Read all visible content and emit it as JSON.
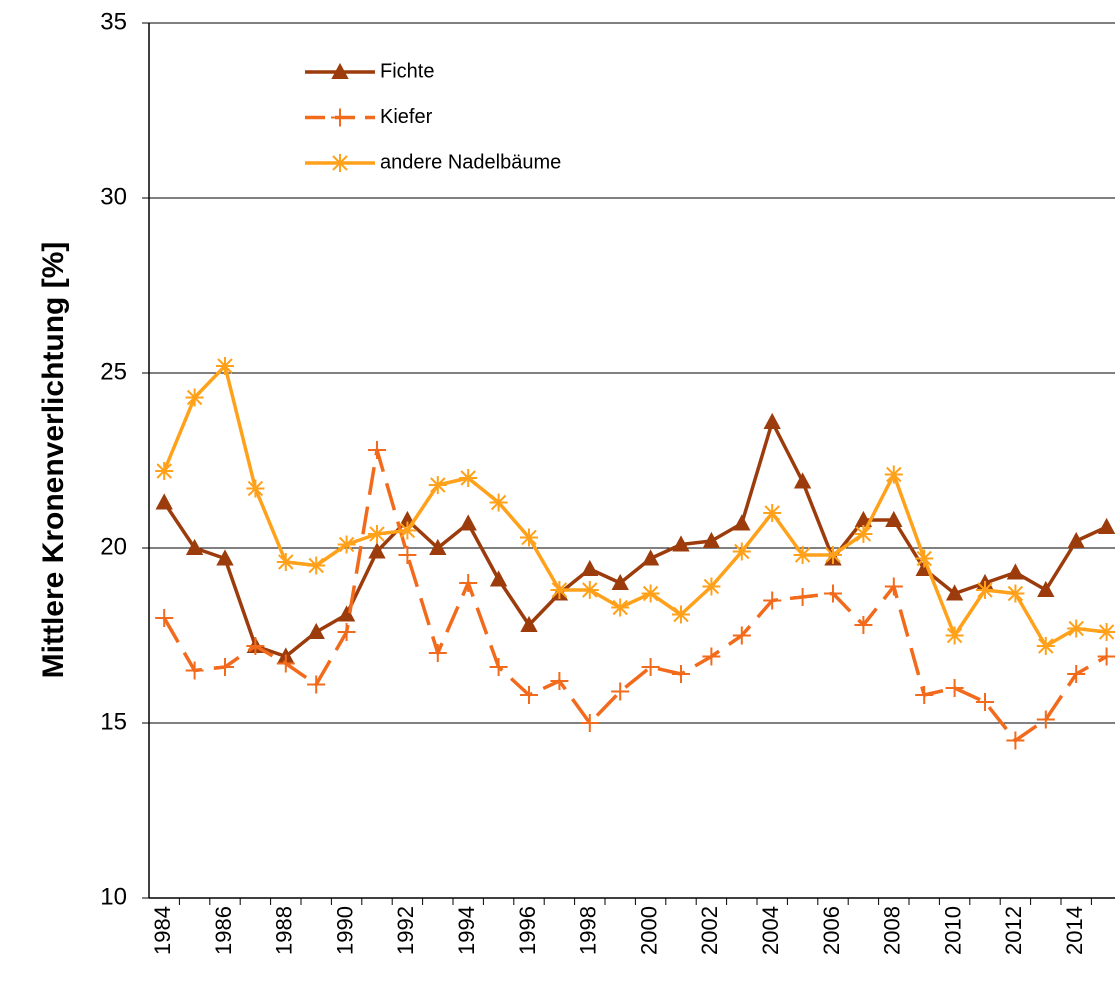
{
  "chart_data": {
    "type": "line",
    "y_label": "Mittlere Kronenverlichtung [%]",
    "categories": [
      "1984",
      null,
      "1986",
      null,
      "1988",
      null,
      "1990",
      null,
      "1992",
      null,
      "1994",
      null,
      "1996",
      null,
      "1998",
      null,
      "2000",
      null,
      "2002",
      null,
      "2004",
      null,
      "2006",
      null,
      "2008",
      null,
      "2010",
      null,
      "2012",
      null,
      "2014",
      null
    ],
    "series": [
      {
        "name": "Fichte",
        "color": "#9c3c0c",
        "marker": "triangle",
        "dash": false,
        "values": [
          21.3,
          20.0,
          19.7,
          17.2,
          16.9,
          17.6,
          18.1,
          19.9,
          20.8,
          20.0,
          20.7,
          19.1,
          17.8,
          18.7,
          19.4,
          19.0,
          19.7,
          20.1,
          20.2,
          20.7,
          23.6,
          21.9,
          19.7,
          20.8,
          20.8,
          19.4,
          18.7,
          19.0,
          19.3,
          18.8,
          20.2,
          20.6
        ]
      },
      {
        "name": "Kiefer",
        "color": "#f26a1b",
        "marker": "plus",
        "dash": true,
        "values": [
          18.0,
          16.5,
          16.6,
          17.2,
          16.7,
          16.1,
          17.6,
          22.8,
          19.8,
          17.0,
          19.0,
          16.6,
          15.8,
          16.2,
          15.0,
          15.9,
          16.6,
          16.4,
          16.9,
          17.5,
          18.5,
          18.6,
          18.7,
          17.8,
          18.9,
          15.8,
          16.0,
          15.6,
          14.5,
          15.1,
          16.4,
          16.9
        ]
      },
      {
        "name": "andere Nadelbäume",
        "color": "#ffa11a",
        "marker": "star",
        "dash": false,
        "values": [
          22.2,
          24.3,
          25.2,
          21.7,
          19.6,
          19.5,
          20.1,
          20.4,
          20.5,
          21.8,
          22.0,
          21.3,
          20.3,
          18.8,
          18.8,
          18.3,
          18.7,
          18.1,
          18.9,
          19.9,
          21.0,
          19.8,
          19.8,
          20.4,
          22.1,
          19.7,
          17.5,
          18.8,
          18.7,
          17.2,
          17.7,
          17.6
        ]
      }
    ],
    "ylim": [
      10,
      35
    ],
    "yticks": [
      10,
      15,
      20,
      25,
      30,
      35
    ],
    "grid": true,
    "legend": "top-left"
  }
}
